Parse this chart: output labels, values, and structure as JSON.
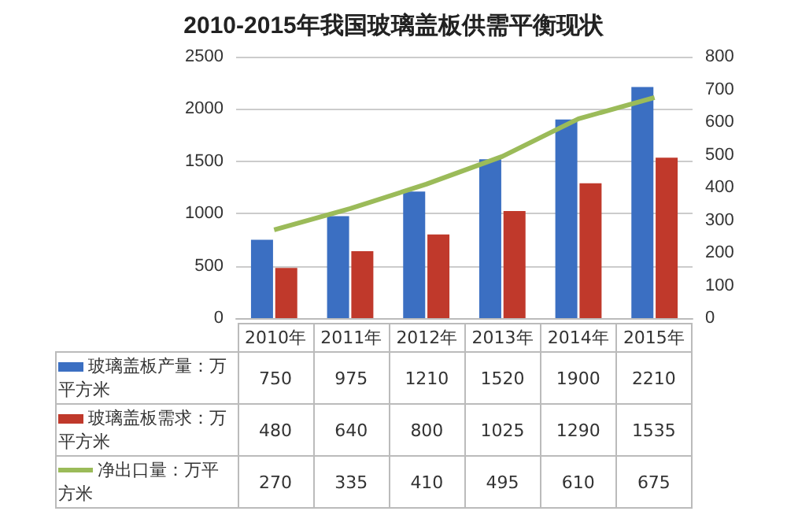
{
  "chart_data": {
    "type": "bar",
    "title": "2010-2015年我国玻璃盖板供需平衡现状",
    "categories": [
      "2010年",
      "2011年",
      "2012年",
      "2013年",
      "2014年",
      "2015年"
    ],
    "series": [
      {
        "name": "玻璃盖板产量：万平方米",
        "color": "#3b6fc2",
        "values": [
          750,
          975,
          1210,
          1520,
          1900,
          2210
        ]
      },
      {
        "name": "玻璃盖板需求：万平方米",
        "color": "#c0392b",
        "values": [
          480,
          640,
          800,
          1025,
          1290,
          1535
        ]
      },
      {
        "name": "净出口量：万平方米",
        "type": "line",
        "axis": "y2",
        "color": "#9bbb59",
        "values": [
          270,
          335,
          410,
          495,
          610,
          675
        ]
      }
    ],
    "ylim": [
      0,
      2500
    ],
    "yticks": [
      0,
      500,
      1000,
      1500,
      2000,
      2500
    ],
    "y2lim": [
      0,
      800
    ],
    "y2ticks": [
      0,
      100,
      200,
      300,
      400,
      500,
      600,
      700,
      800
    ],
    "grid": "y",
    "legend": "bottom",
    "data_labels": true,
    "marker": "none"
  }
}
